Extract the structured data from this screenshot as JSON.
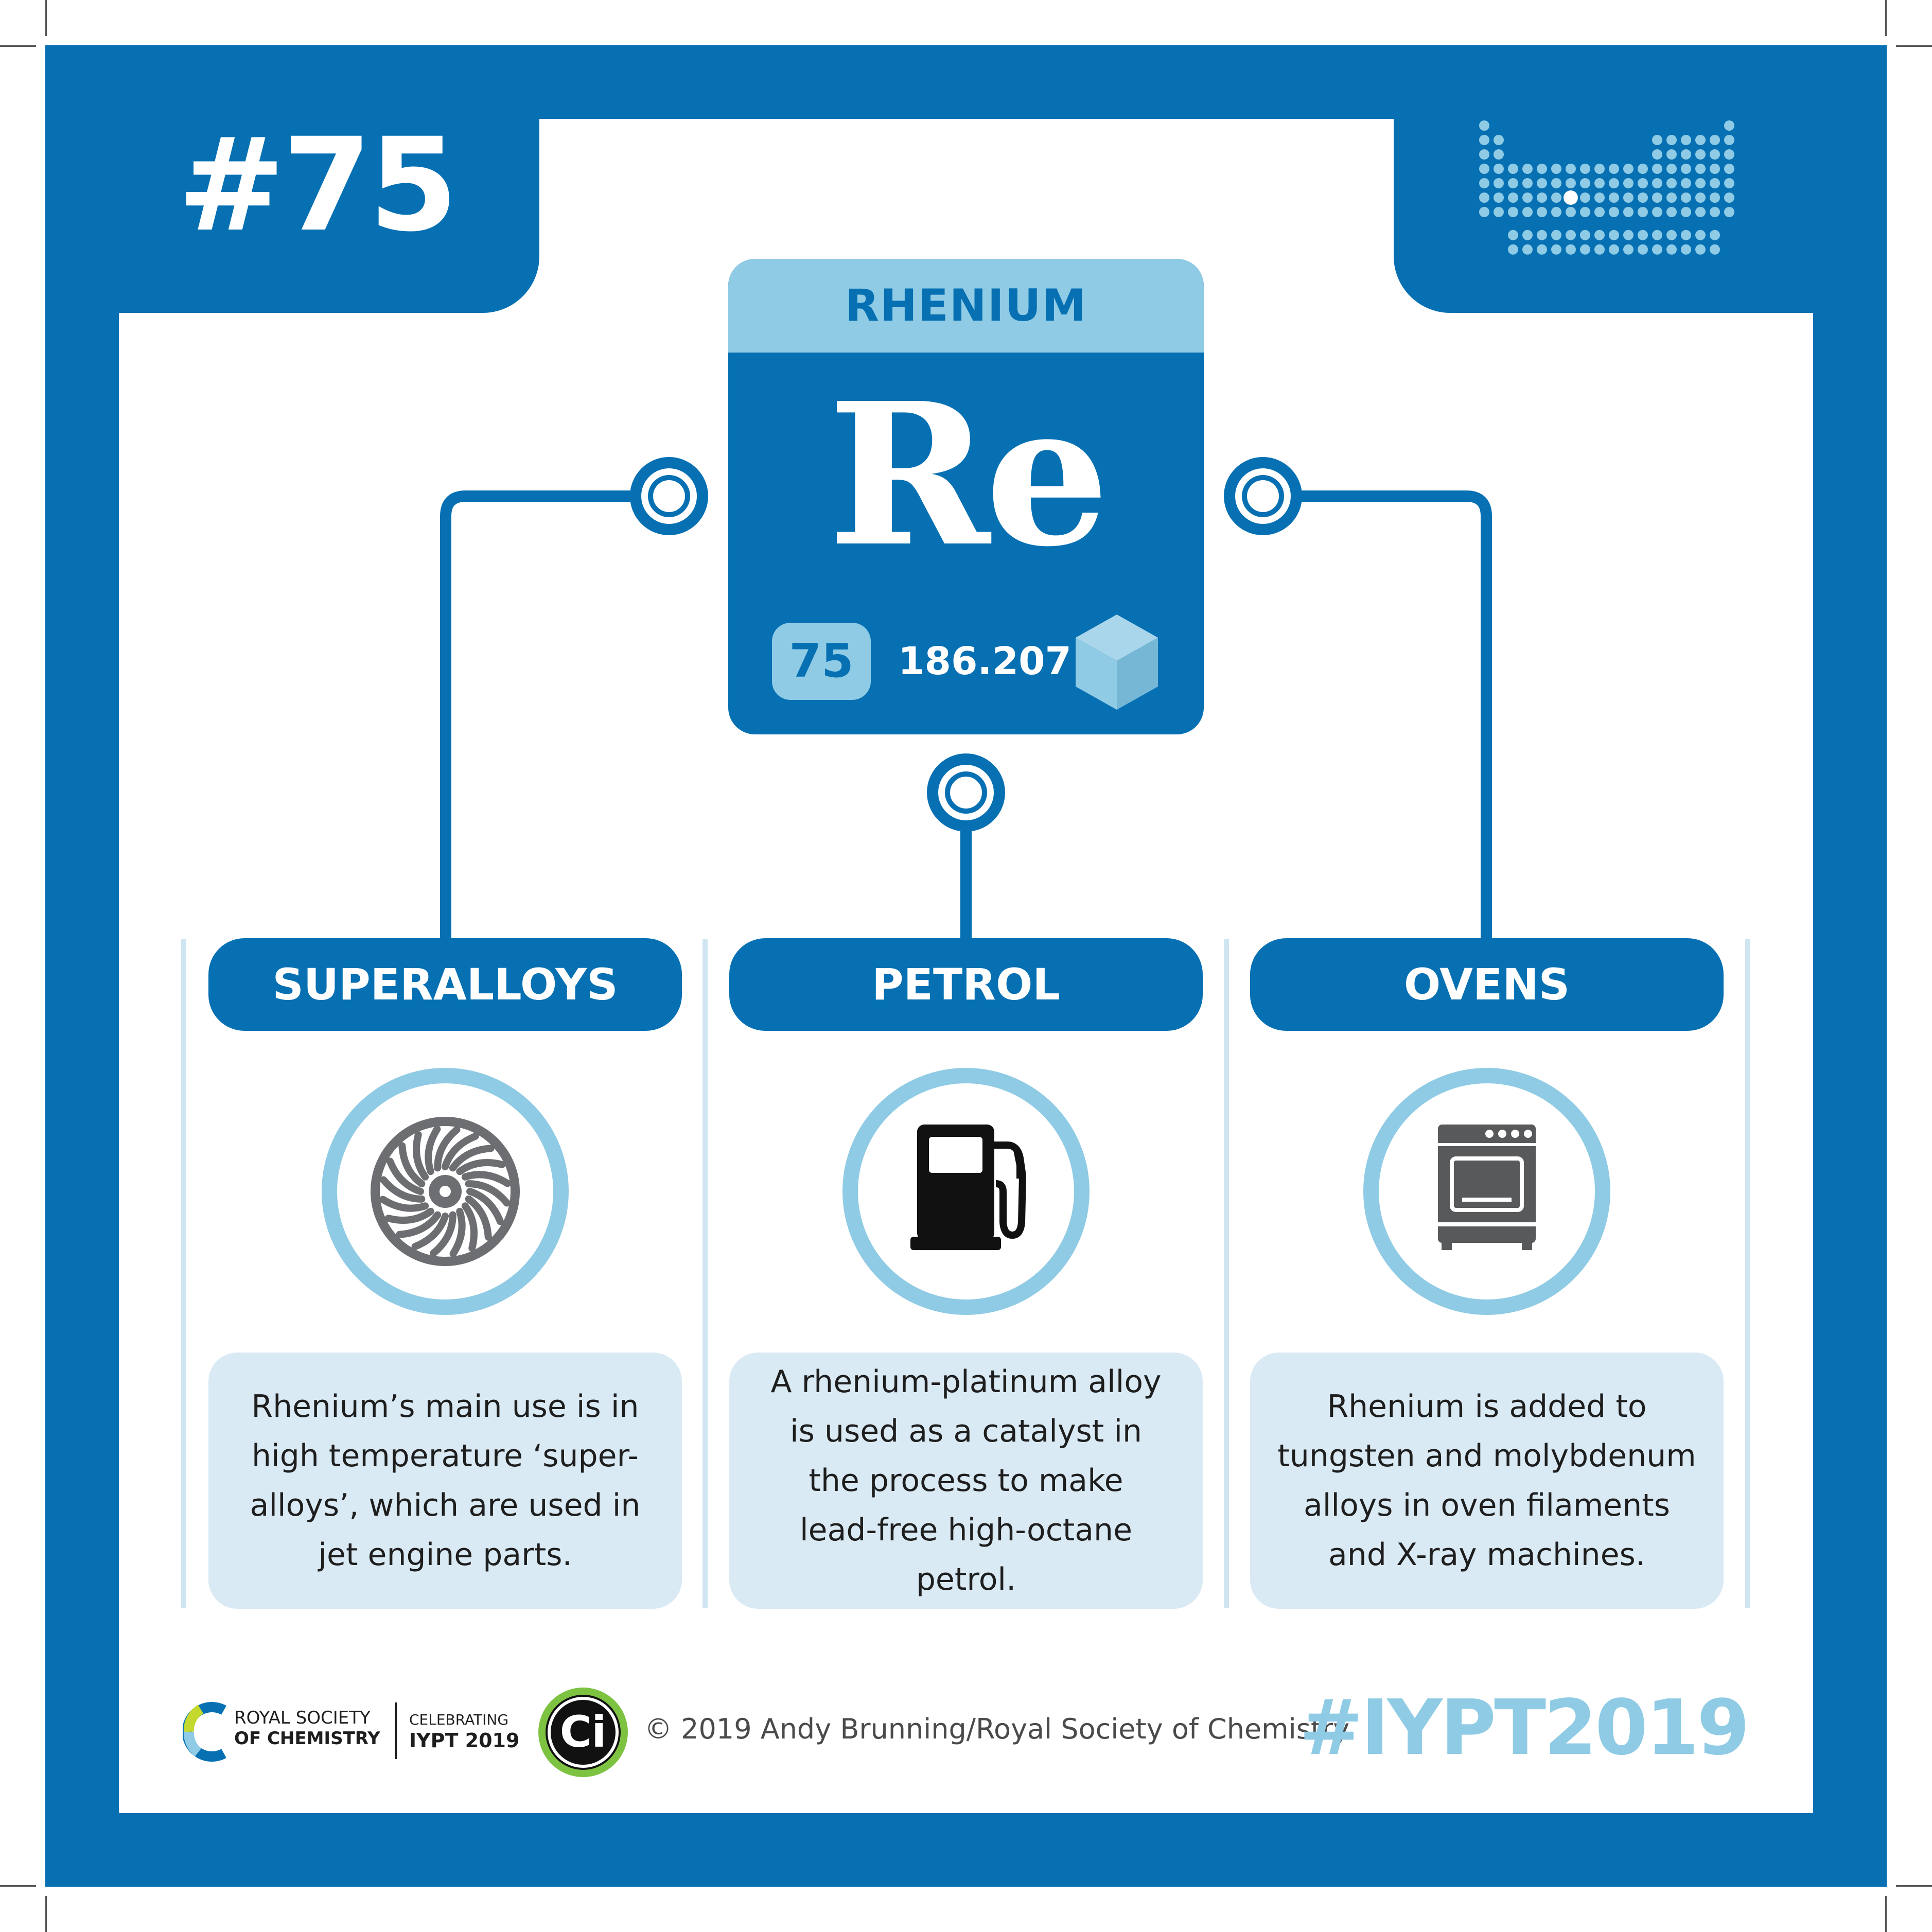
{
  "header": {
    "number": "#75"
  },
  "element": {
    "name": "RHENIUM",
    "symbol": "Re",
    "atomic_number": "75",
    "atomic_mass": "186.207"
  },
  "uses": [
    {
      "title": "SUPERALLOYS",
      "icon": "jet-engine-icon",
      "description": "Rhenium’s main use is in high temperature ‘super-alloys’, which are used in jet engine parts."
    },
    {
      "title": "PETROL",
      "icon": "fuel-pump-icon",
      "description": "A rhenium-platinum alloy is used as a catalyst in the process to make lead-free high-octane petrol."
    },
    {
      "title": "OVENS",
      "icon": "oven-icon",
      "description": "Rhenium is added to tungsten and molybdenum alloys in oven filaments and X-ray machines."
    }
  ],
  "footer": {
    "rsc_line1": "ROYAL SOCIETY",
    "rsc_line2": "OF CHEMISTRY",
    "iypt_line1": "CELEBRATING",
    "iypt_line2": "IYPT 2019",
    "ci_logo_text": "Ci",
    "copyright": "© 2019 Andy Brunning/Royal Society of Chemistry",
    "hashtag": "#IYPT2019"
  },
  "colors": {
    "primary": "#0670b3",
    "light": "#8fcbe4",
    "pale": "#daeaf4",
    "icon_grey": "#58595b"
  }
}
